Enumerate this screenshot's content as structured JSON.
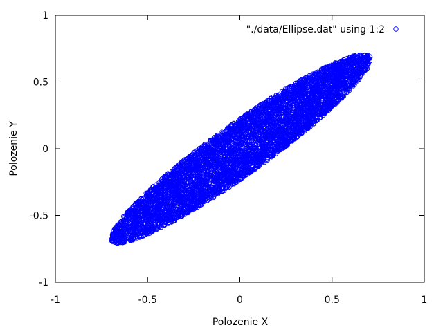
{
  "chart_data": {
    "type": "scatter",
    "title": "",
    "xlabel": "Polozenie X",
    "ylabel": "Polozenie Y",
    "xlim": [
      -1,
      1
    ],
    "ylim": [
      -1,
      1
    ],
    "x_ticks": [
      -1,
      -0.5,
      0,
      0.5,
      1
    ],
    "y_ticks": [
      -1,
      -0.5,
      0,
      0.5,
      1
    ],
    "x_tick_labels": [
      "-1",
      "-0.5",
      "0",
      "0.5",
      "1"
    ],
    "y_tick_labels": [
      "-1",
      "-0.5",
      "0",
      "0.5",
      "1"
    ],
    "grid": false,
    "legend_position": "top-right",
    "marker": "open-circle",
    "series": [
      {
        "name": "\"./data/Ellipse.dat\" using 1:2",
        "color": "#0000ff",
        "shape": {
          "kind": "filled-ellipse-cloud",
          "center": [
            0,
            0
          ],
          "major_axis_end_a": [
            -0.69,
            -0.7
          ],
          "major_axis_end_b": [
            0.7,
            0.7
          ],
          "minor_half_width": 0.165,
          "x_range": [
            -0.72,
            0.72
          ],
          "y_range": [
            -0.72,
            0.72
          ],
          "point_count": 6000
        }
      }
    ]
  }
}
